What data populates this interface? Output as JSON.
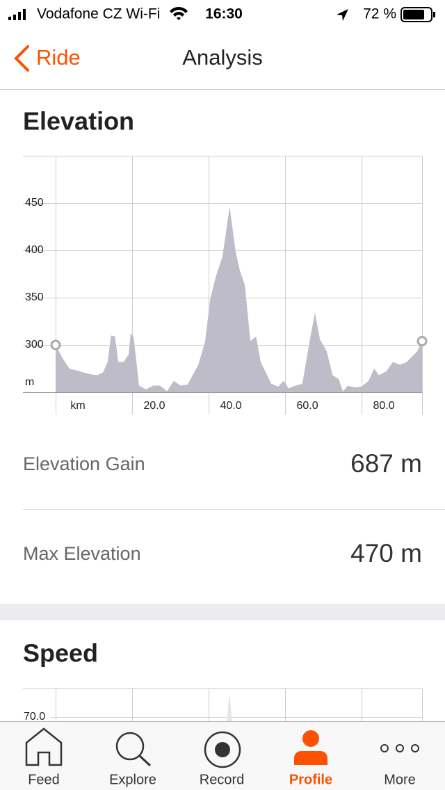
{
  "status_bar": {
    "carrier": "Vodafone CZ Wi-Fi",
    "time": "16:30",
    "battery": "72 %"
  },
  "nav": {
    "back": "Ride",
    "title": "Analysis"
  },
  "chart_data": {
    "type": "area",
    "title": "Elevation",
    "color": "#b9b8c5",
    "x": [
      0,
      1.8,
      3.6,
      5.5,
      7.3,
      9.1,
      10.9,
      12.4,
      13.6,
      14.5,
      15.5,
      16.4,
      17.8,
      19.1,
      19.6,
      20.4,
      21.8,
      23.6,
      25.5,
      27.3,
      29.1,
      30.9,
      32.7,
      34.5,
      37.3,
      39.1,
      40.4,
      41.8,
      43.6,
      45.5,
      47.0,
      48.2,
      49.5,
      50.9,
      52.4,
      53.6,
      56.4,
      58.2,
      59.6,
      60.9,
      62.7,
      64.5,
      66.4,
      67.8,
      69.1,
      70.9,
      72.4,
      74.0,
      75.1,
      76.4,
      78.2,
      80.0,
      81.8,
      83.3,
      84.5,
      86.4,
      88.2,
      90.0,
      91.8,
      94.5,
      95.8
    ],
    "values": [
      300,
      286,
      275,
      273,
      271,
      269,
      268,
      271,
      282,
      310,
      309,
      282,
      282,
      290,
      312,
      308,
      257,
      253,
      257,
      257,
      251,
      262,
      257,
      258,
      279,
      304,
      348,
      371,
      393,
      446,
      400,
      378,
      363,
      304,
      309,
      282,
      259,
      256,
      262,
      254,
      257,
      259,
      304,
      334,
      306,
      293,
      268,
      264,
      251,
      257,
      255,
      256,
      262,
      275,
      268,
      272,
      282,
      279,
      282,
      293,
      304
    ],
    "xlim": [
      0,
      95.8
    ],
    "ylim": [
      250,
      500
    ],
    "xticks": [
      {
        "value": 0,
        "label": "km"
      },
      {
        "value": 20,
        "label": "20.0"
      },
      {
        "value": 40,
        "label": "40.0"
      },
      {
        "value": 60,
        "label": "60.0"
      },
      {
        "value": 80,
        "label": "80.0"
      }
    ],
    "yticks": [
      {
        "value": 250,
        "label": "m"
      },
      300,
      350,
      400,
      450
    ],
    "grid": true
  },
  "stats": [
    {
      "label": "Elevation Gain",
      "value": "687 m"
    },
    {
      "label": "Max Elevation",
      "value": "470 m"
    }
  ],
  "speed": {
    "title": "Speed",
    "tick_label": "70.0"
  },
  "tabs": [
    "Feed",
    "Explore",
    "Record",
    "Profile",
    "More"
  ],
  "active_tab": 3
}
